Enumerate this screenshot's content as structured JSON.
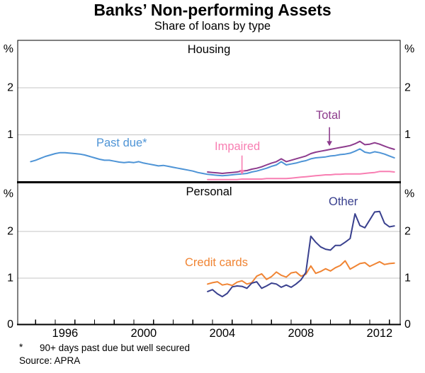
{
  "footnote": {
    "marker": "*",
    "text": "90+ days past due but well secured"
  },
  "source": "Source: APRA",
  "chart_data": {
    "type": "line",
    "title": "Banks’ Non-performing Assets",
    "subtitle": "Share of loans by type",
    "unit": "%",
    "grid": "horizontal gridlines at 1 and 2, dual y-axes, labels inline on lines",
    "x_axis": {
      "period": "quarterly",
      "step_years": 0.25,
      "range_years": [
        1994.1,
        2013.55
      ],
      "tick_years": [
        1995,
        1996,
        1997,
        1998,
        1999,
        2000,
        2001,
        2002,
        2003,
        2004,
        2005,
        2006,
        2007,
        2008,
        2009,
        2010,
        2011,
        2012,
        2013
      ],
      "year_labels": [
        1996,
        2000,
        2004,
        2008,
        2012
      ]
    },
    "panels": [
      {
        "name": "Housing",
        "ylim": [
          0,
          3
        ],
        "gridline_values": [
          1,
          2
        ],
        "yticks": [
          {
            "v": 3,
            "label": "%"
          },
          {
            "v": 2,
            "label": "2"
          },
          {
            "v": 1,
            "label": "1"
          }
        ],
        "series": [
          {
            "name": "Past due*",
            "color": "#4e94d6",
            "start_year": 1994.75,
            "values": [
              0.43,
              0.46,
              0.5,
              0.54,
              0.57,
              0.6,
              0.62,
              0.62,
              0.61,
              0.6,
              0.59,
              0.57,
              0.54,
              0.51,
              0.48,
              0.46,
              0.46,
              0.44,
              0.42,
              0.41,
              0.42,
              0.41,
              0.43,
              0.4,
              0.38,
              0.36,
              0.34,
              0.35,
              0.33,
              0.31,
              0.29,
              0.27,
              0.25,
              0.23,
              0.2,
              0.18,
              0.16,
              0.15,
              0.14,
              0.13,
              0.14,
              0.15,
              0.16,
              0.17,
              0.18,
              0.21,
              0.23,
              0.26,
              0.29,
              0.33,
              0.36,
              0.43,
              0.36,
              0.38,
              0.4,
              0.43,
              0.45,
              0.49,
              0.51,
              0.52,
              0.53,
              0.55,
              0.56,
              0.58,
              0.59,
              0.61,
              0.65,
              0.7,
              0.63,
              0.61,
              0.64,
              0.62,
              0.59,
              0.55,
              0.51
            ]
          },
          {
            "name": "Impaired",
            "color": "#f87eb2",
            "start_year": 2003.75,
            "values": [
              0.05,
              0.05,
              0.05,
              0.05,
              0.05,
              0.05,
              0.05,
              0.06,
              0.06,
              0.06,
              0.06,
              0.06,
              0.07,
              0.07,
              0.07,
              0.07,
              0.07,
              0.08,
              0.09,
              0.1,
              0.11,
              0.12,
              0.13,
              0.14,
              0.15,
              0.15,
              0.16,
              0.16,
              0.17,
              0.17,
              0.17,
              0.17,
              0.18,
              0.19,
              0.2,
              0.22,
              0.22,
              0.22,
              0.21
            ]
          },
          {
            "name": "Total",
            "color": "#8d3b8d",
            "start_year": 2003.75,
            "values": [
              0.21,
              0.2,
              0.19,
              0.18,
              0.19,
              0.2,
              0.21,
              0.23,
              0.24,
              0.27,
              0.29,
              0.32,
              0.36,
              0.4,
              0.43,
              0.49,
              0.43,
              0.46,
              0.49,
              0.52,
              0.55,
              0.6,
              0.63,
              0.65,
              0.67,
              0.69,
              0.71,
              0.73,
              0.75,
              0.77,
              0.81,
              0.86,
              0.79,
              0.8,
              0.83,
              0.8,
              0.76,
              0.72,
              0.69
            ]
          }
        ],
        "annotations": [
          {
            "target": "Total",
            "year": 2009.95,
            "v_from": 1.16,
            "v_to": 0.76,
            "color": "#8d3b8d"
          },
          {
            "target": "Impaired",
            "year": 2005.5,
            "v_from": 0.56,
            "v_to": 0.15,
            "color": "#f87eb2"
          }
        ]
      },
      {
        "name": "Personal",
        "ylim": [
          0,
          3
        ],
        "gridline_values": [
          1,
          2
        ],
        "yticks": [
          {
            "v": 3,
            "label": "%"
          },
          {
            "v": 2,
            "label": "2"
          },
          {
            "v": 1,
            "label": "1"
          },
          {
            "v": 0,
            "label": "0"
          }
        ],
        "series": [
          {
            "name": "Credit cards",
            "color": "#f08433",
            "start_year": 2003.75,
            "values": [
              0.87,
              0.9,
              0.92,
              0.85,
              0.87,
              0.84,
              0.91,
              0.94,
              0.87,
              0.9,
              1.04,
              1.09,
              0.97,
              1.03,
              1.13,
              1.06,
              1.02,
              1.11,
              1.13,
              1.04,
              1.08,
              1.26,
              1.1,
              1.14,
              1.2,
              1.15,
              1.22,
              1.27,
              1.37,
              1.19,
              1.25,
              1.31,
              1.33,
              1.25,
              1.3,
              1.35,
              1.29,
              1.31,
              1.32
            ]
          },
          {
            "name": "Other",
            "color": "#39408e",
            "start_year": 2003.75,
            "values": [
              0.71,
              0.75,
              0.66,
              0.6,
              0.67,
              0.81,
              0.83,
              0.82,
              0.78,
              0.89,
              0.92,
              0.78,
              0.83,
              0.89,
              0.87,
              0.8,
              0.85,
              0.8,
              0.87,
              0.96,
              1.12,
              1.9,
              1.77,
              1.67,
              1.62,
              1.6,
              1.7,
              1.7,
              1.77,
              1.85,
              2.38,
              2.13,
              2.08,
              2.25,
              2.42,
              2.43,
              2.18,
              2.1,
              2.12
            ]
          }
        ],
        "annotations": []
      }
    ]
  }
}
